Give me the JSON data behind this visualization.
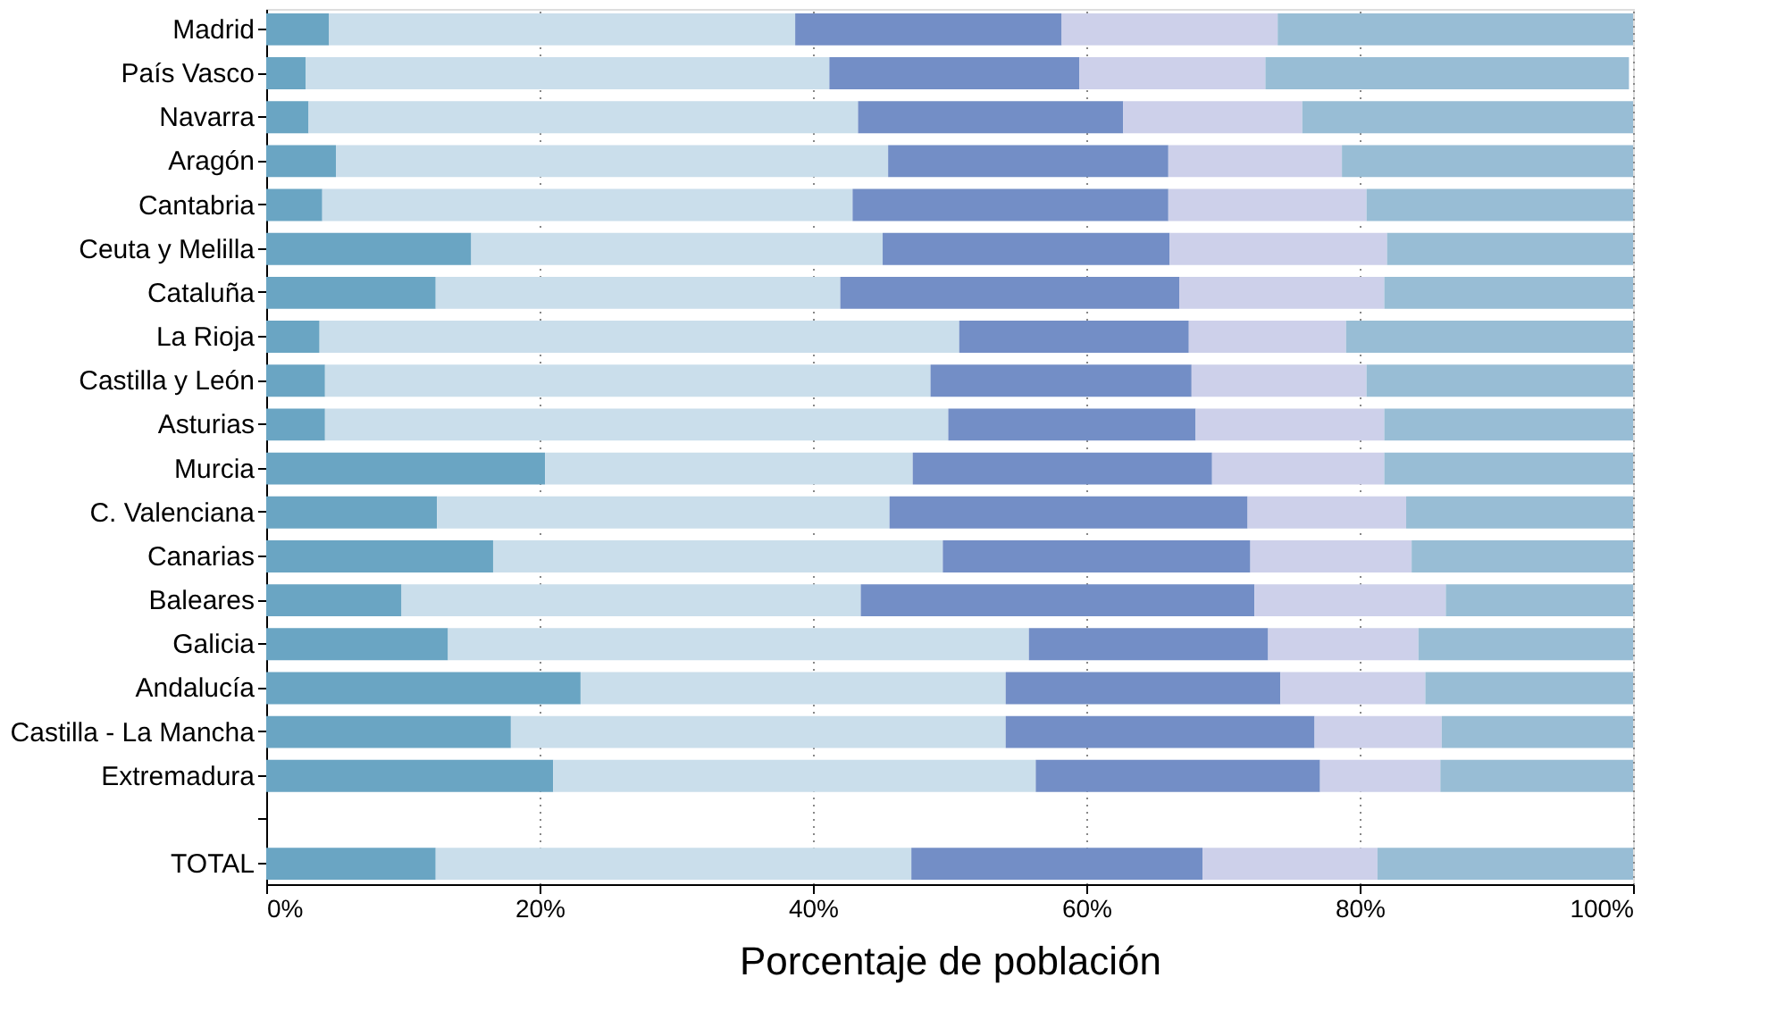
{
  "chart_data": {
    "type": "bar",
    "orientation": "horizontal",
    "stacked": true,
    "xlabel": "Porcentaje de población",
    "categories": [
      "Madrid",
      "País Vasco",
      "Navarra",
      "Aragón",
      "Cantabria",
      "Ceuta y Melilla",
      "Cataluña",
      "La Rioja",
      "Castilla y León",
      "Asturias",
      "Murcia",
      "C. Valenciana",
      "Canarias",
      "Baleares",
      "Galicia",
      "Andalucía",
      "Castilla - La Mancha",
      "Extremadura",
      null,
      "TOTAL"
    ],
    "series": [
      {
        "color": "#6aa5c3",
        "values": [
          4.6,
          2.9,
          3.1,
          5.1,
          4.1,
          15.0,
          12.4,
          3.9,
          4.3,
          4.3,
          20.4,
          12.5,
          16.6,
          9.9,
          13.3,
          23.0,
          17.9,
          21.0,
          null,
          12.4
        ]
      },
      {
        "color": "#cadeeb",
        "values": [
          34.1,
          38.3,
          40.2,
          40.4,
          38.8,
          30.1,
          29.6,
          46.8,
          44.3,
          45.6,
          26.9,
          33.1,
          32.9,
          33.6,
          42.5,
          31.1,
          36.2,
          35.3,
          null,
          34.8
        ]
      },
      {
        "color": "#738ec6",
        "values": [
          19.5,
          18.3,
          19.4,
          20.5,
          23.1,
          21.0,
          24.8,
          16.8,
          19.1,
          18.1,
          21.9,
          26.2,
          22.5,
          28.8,
          17.5,
          20.1,
          22.6,
          20.8,
          null,
          21.3
        ]
      },
      {
        "color": "#cdd0ea",
        "values": [
          15.8,
          13.6,
          13.1,
          12.7,
          14.5,
          15.9,
          15.0,
          11.5,
          12.8,
          13.8,
          12.6,
          11.6,
          11.8,
          14.0,
          11.0,
          10.6,
          9.3,
          8.8,
          null,
          12.8
        ]
      },
      {
        "color": "#98bdd5",
        "values": [
          26.0,
          26.6,
          24.2,
          21.3,
          19.5,
          18.0,
          18.2,
          21.0,
          19.5,
          18.2,
          18.2,
          16.6,
          16.2,
          13.7,
          15.7,
          15.2,
          14.0,
          14.1,
          null,
          18.7
        ]
      }
    ],
    "xlim": [
      0,
      100
    ],
    "xticks": [
      {
        "value": 0,
        "label": "0%"
      },
      {
        "value": 20,
        "label": "20%"
      },
      {
        "value": 40,
        "label": "40%"
      },
      {
        "value": 60,
        "label": "60%"
      },
      {
        "value": 80,
        "label": "80%"
      },
      {
        "value": 100,
        "label": "100%"
      }
    ],
    "grid": "x",
    "legend": false
  }
}
